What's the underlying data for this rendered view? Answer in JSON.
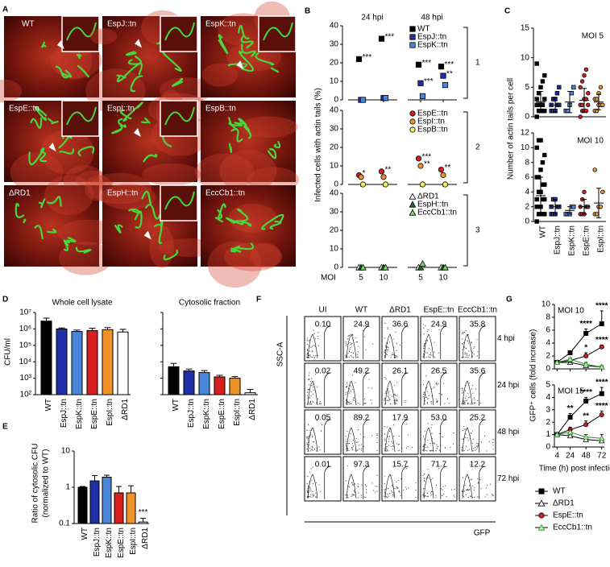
{
  "panel_a": {
    "letter": "A",
    "tiles": [
      "WT",
      "EspJ::tn",
      "EspK::tn",
      "EspE::tn",
      "EspI::tn",
      "EspB::tn",
      "ΔRD1",
      "EspH::tn",
      "EccCb1::tn"
    ]
  },
  "panel_b": {
    "letter": "B",
    "times": [
      "24 hpi",
      "48 hpi"
    ],
    "moi": [
      5,
      10
    ],
    "x_label": "MOI",
    "y_label": "Infected cells with actin tails (%)",
    "ylim": [
      0,
      40
    ],
    "yticks": [
      0,
      10,
      20,
      30,
      40
    ],
    "groups": [
      {
        "label": "1",
        "series": [
          {
            "name": "WT",
            "color": "#000000",
            "marker": "square",
            "values": [
              22,
              33,
              19,
              18
            ],
            "stars": [
              "***",
              "***",
              "***",
              "***"
            ]
          },
          {
            "name": "EspJ::tn",
            "color": "#1f2fa8",
            "marker": "square",
            "values": [
              0,
              1,
              9,
              13
            ],
            "stars": [
              null,
              null,
              "***",
              "**"
            ]
          },
          {
            "name": "EspK::tn",
            "color": "#4a86d8",
            "marker": "square",
            "values": [
              0,
              1,
              2,
              8
            ],
            "stars": [
              null,
              null,
              null,
              null
            ]
          }
        ]
      },
      {
        "label": "2",
        "series": [
          {
            "name": "EspE::tn",
            "color": "#d81e1e",
            "marker": "circle",
            "values": [
              5,
              7,
              14,
              8
            ],
            "stars": [
              "*",
              "**",
              "***",
              "**"
            ]
          },
          {
            "name": "EspI::tn",
            "color": "#f0922a",
            "marker": "circle",
            "values": [
              4,
              4,
              10,
              5
            ],
            "stars": [
              null,
              null,
              "**",
              null
            ]
          },
          {
            "name": "EspB::tn",
            "color": "#f7ee5a",
            "marker": "circle",
            "values": [
              0,
              0,
              0,
              0
            ],
            "stars": [
              null,
              null,
              null,
              null
            ]
          }
        ]
      },
      {
        "label": "3",
        "series": [
          {
            "name": "ΔRD1",
            "color": "#ffffff",
            "marker": "triangle",
            "values": [
              0,
              0,
              0,
              0
            ],
            "stars": [
              null,
              null,
              null,
              null
            ]
          },
          {
            "name": "EspH::tn",
            "color": "#1f6b1f",
            "marker": "triangle",
            "values": [
              0,
              0,
              0,
              0
            ],
            "stars": [
              null,
              null,
              null,
              null
            ]
          },
          {
            "name": "EccCb1::tn",
            "color": "#7ed36a",
            "marker": "triangle",
            "values": [
              0,
              0,
              2,
              0
            ],
            "stars": [
              null,
              null,
              null,
              null
            ]
          }
        ]
      }
    ]
  },
  "panel_c": {
    "letter": "C",
    "y_label": "Number of actin tails per cell",
    "categories": [
      "WT",
      "EspJ::tn",
      "EspK::tn",
      "EspE::tn",
      "EspI::tn"
    ],
    "colors": [
      "#000000",
      "#1f2fa8",
      "#4a86d8",
      "#d81e1e",
      "#f0922a"
    ],
    "markers": [
      "square",
      "square",
      "square",
      "circle",
      "circle"
    ],
    "subplots": [
      {
        "label": "MOI 5",
        "ylim": [
          0,
          15
        ],
        "yticks": [
          0,
          5,
          10,
          15
        ],
        "points": [
          [
            0,
            1,
            1,
            1,
            1,
            2,
            2,
            2,
            2,
            3,
            3,
            4,
            5,
            6,
            7,
            9
          ],
          [
            1,
            1,
            1,
            2,
            2,
            2,
            3,
            3,
            4,
            5
          ],
          [
            1,
            1,
            2,
            4,
            5
          ],
          [
            0,
            1,
            1,
            1,
            2,
            2,
            2,
            3,
            3,
            4,
            5,
            6,
            7,
            8
          ],
          [
            1,
            1,
            2,
            2,
            2,
            3,
            3,
            4,
            5
          ]
        ],
        "means": [
          2.5,
          2,
          2.5,
          2.8,
          2.5
        ],
        "sd": [
          1.8,
          1.2,
          1.8,
          2,
          1.3
        ]
      },
      {
        "label": "MOI 10",
        "ylim": [
          0,
          12
        ],
        "yticks": [
          0,
          2,
          4,
          6,
          8,
          10,
          12
        ],
        "points": [
          [
            0,
            1,
            1,
            1,
            1,
            2,
            2,
            2,
            3,
            3,
            3,
            4,
            4,
            5,
            5,
            6,
            6,
            7,
            8,
            9,
            10,
            11,
            11
          ],
          [
            1,
            1,
            1,
            2,
            2,
            2,
            3,
            3
          ],
          [
            1,
            1,
            1,
            2,
            2
          ],
          [
            1,
            1,
            1,
            2,
            2,
            2,
            3,
            4
          ],
          [
            1,
            1,
            2,
            2,
            4,
            7
          ]
        ],
        "means": [
          3.5,
          2,
          1.5,
          2,
          2.5
        ],
        "sd": [
          2.5,
          1,
          0.5,
          1,
          2
        ]
      }
    ]
  },
  "panel_d": {
    "letter": "D",
    "y_label": "CFU/ml",
    "categories": [
      "WT",
      "EspJ::tn",
      "EspK::tn",
      "EspE::tn",
      "EspI::tn",
      "ΔRD1"
    ],
    "colors": [
      "#000000",
      "#1f2fa8",
      "#4a86d8",
      "#d81e1e",
      "#f0922a",
      "#ffffff"
    ],
    "ylim": [
      100,
      10000000
    ],
    "log": true,
    "yticks": [
      {
        "value": 100,
        "label": "10²"
      },
      {
        "value": 1000,
        "label": "10³"
      },
      {
        "value": 10000,
        "label": "10⁴"
      },
      {
        "value": 100000,
        "label": "10⁵"
      },
      {
        "value": 1000000,
        "label": "10⁶"
      },
      {
        "value": 10000000,
        "label": "10⁷"
      }
    ],
    "subplots": [
      {
        "title": "Whole cell lysate",
        "values": [
          3000000,
          1000000,
          700000,
          800000,
          900000,
          650000
        ],
        "errors": [
          1500000,
          150000,
          150000,
          300000,
          300000,
          300000
        ]
      },
      {
        "title": "Cytosolic fraction",
        "values": [
          5000,
          2800,
          2200,
          1200,
          1000,
          130
        ],
        "errors": [
          3000,
          800,
          700,
          300,
          250,
          80
        ]
      }
    ]
  },
  "panel_e": {
    "letter": "E",
    "y_label": [
      "Ratio of cytosolic CFU",
      "(normalized to WT)"
    ],
    "categories": [
      "WT",
      "EspJ::tn",
      "EspK::tn",
      "EspE::tn",
      "EspI::tn",
      "ΔRD1"
    ],
    "colors": [
      "#000000",
      "#1f2fa8",
      "#4a86d8",
      "#d81e1e",
      "#f0922a",
      "#ffffff"
    ],
    "ylim": [
      0.1,
      10
    ],
    "log": true,
    "yticks": [
      0.1,
      1,
      10
    ],
    "values": [
      1,
      1.5,
      1.9,
      0.7,
      0.7,
      0.11
    ],
    "errors": [
      0.05,
      0.6,
      0.25,
      0.35,
      0.4,
      0.03
    ],
    "stars": [
      null,
      null,
      null,
      null,
      null,
      "***"
    ]
  },
  "panel_f": {
    "letter": "F",
    "y_label": "SSC-A",
    "x_label": "GFP",
    "columns": [
      "UI",
      "WT",
      "ΔRD1",
      "EspE::tn",
      "EccCb1::tn"
    ],
    "rows": [
      "4 hpi",
      "24 hpi",
      "48 hpi",
      "72 hpi"
    ],
    "cells": [
      [
        "0.10",
        "24.9",
        "36.6",
        "24.9",
        "35.8"
      ],
      [
        "0.02",
        "49.2",
        "26.1",
        "26.5",
        "35.6"
      ],
      [
        "0.05",
        "89.2",
        "17.9",
        "53.0",
        "25.2"
      ],
      [
        "0.01",
        "97.3",
        "15.7",
        "71.7",
        "12.2"
      ]
    ]
  },
  "panel_g": {
    "letter": "G",
    "y_label": "GFP⁺ cells (fold increase)",
    "x_label": "Time (h) post infection",
    "x": [
      4,
      24,
      48,
      72
    ],
    "xlim": [
      0,
      76
    ],
    "xticks": [
      4,
      24,
      48,
      72
    ],
    "series": [
      {
        "name": "WT",
        "color": "#000000",
        "fill": "#000000",
        "marker": "square"
      },
      {
        "name": "ΔRD1",
        "color": "#000000",
        "fill": "#ffffff",
        "marker": "triangle"
      },
      {
        "name": "EspE::tn",
        "color": "#000000",
        "fill": "#d81e1e",
        "marker": "circle"
      },
      {
        "name": "EccCb1::tn",
        "color": "#2e8b2e",
        "fill": "#b8f0a8",
        "marker": "triangle"
      }
    ],
    "subplots": [
      {
        "label": "MOI 10",
        "ylim": [
          0,
          10
        ],
        "yticks": [
          0,
          2,
          4,
          6,
          8,
          10
        ],
        "values": [
          [
            1,
            2.5,
            5.5,
            7
          ],
          [
            1,
            1,
            0.5,
            0.3
          ],
          [
            1,
            1.3,
            2,
            3.4
          ],
          [
            1,
            1.5,
            0.7,
            0.3
          ]
        ],
        "errors": [
          [
            0,
            0.3,
            0.7,
            2
          ],
          [
            0,
            0.1,
            0.3,
            0.2
          ],
          [
            0,
            0.2,
            0.5,
            0.3
          ],
          [
            0,
            0.2,
            0.3,
            0.2
          ]
        ],
        "stars": [
          [
            null,
            null,
            "****",
            "****"
          ],
          [
            null,
            null,
            null,
            null
          ],
          [
            null,
            null,
            "*",
            "****"
          ],
          [
            null,
            null,
            null,
            null
          ]
        ]
      },
      {
        "label": "MOI 15",
        "ylim": [
          0,
          5
        ],
        "yticks": [
          0,
          1,
          2,
          3,
          4,
          5
        ],
        "values": [
          [
            1,
            2.4,
            3.7,
            4.3
          ],
          [
            1,
            0.9,
            0.6,
            0.5
          ],
          [
            1,
            1.4,
            1.8,
            2.6
          ],
          [
            1,
            1.2,
            0.8,
            0.7
          ]
        ],
        "errors": [
          [
            0,
            0.3,
            0.3,
            0.5
          ],
          [
            0,
            0.1,
            0.2,
            0.2
          ],
          [
            0,
            0.2,
            0.3,
            0.3
          ],
          [
            0,
            0.2,
            0.2,
            0.3
          ]
        ],
        "stars": [
          [
            null,
            "**",
            "****",
            "****"
          ],
          [
            null,
            null,
            null,
            null
          ],
          [
            null,
            null,
            "**",
            "****"
          ],
          [
            null,
            null,
            null,
            null
          ]
        ]
      }
    ]
  }
}
